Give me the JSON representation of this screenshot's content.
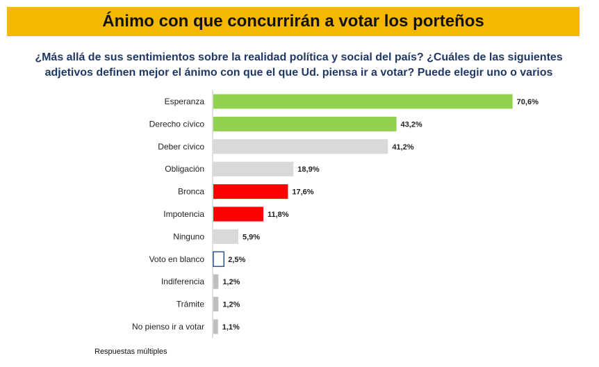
{
  "title": "Ánimo con que concurrirán a votar los porteños",
  "subtitle": "¿Más allá de sus sentimientos sobre la realidad política y social del país? ¿Cuáles de las siguientes adjetivos definen mejor el ánimo con que el que Ud. piensa ir a votar? Puede elegir uno o varios",
  "footnote": "Respuestas múltiples",
  "chart_data": {
    "type": "bar",
    "orientation": "horizontal",
    "categories": [
      "Esperanza",
      "Derecho cívico",
      "Deber cívico",
      "Obligación",
      "Bronca",
      "Impotencia",
      "Ninguno",
      "Voto en blanco",
      "Indiferencia",
      "Trámite",
      "No pienso ir a votar"
    ],
    "values": [
      70.6,
      43.2,
      41.2,
      18.9,
      17.6,
      11.8,
      5.9,
      2.5,
      1.2,
      1.2,
      1.1
    ],
    "value_labels": [
      "70,6%",
      "43,2%",
      "41,2%",
      "18,9%",
      "17,6%",
      "11,8%",
      "5,9%",
      "2,5%",
      "1,2%",
      "1,2%",
      "1,1%"
    ],
    "colors": [
      "#92d050",
      "#92d050",
      "#d9d9d9",
      "#d9d9d9",
      "#ff0000",
      "#ff0000",
      "#d9d9d9",
      "#ffffff",
      "#bfbfbf",
      "#bfbfbf",
      "#bfbfbf"
    ],
    "bar_outline_colors": [
      "none",
      "none",
      "none",
      "none",
      "none",
      "none",
      "none",
      "#2f5597",
      "none",
      "none",
      "none"
    ],
    "axis_line_color": "#bfbfbf",
    "xlim": [
      0,
      75
    ],
    "grid": false,
    "legend": "none"
  }
}
